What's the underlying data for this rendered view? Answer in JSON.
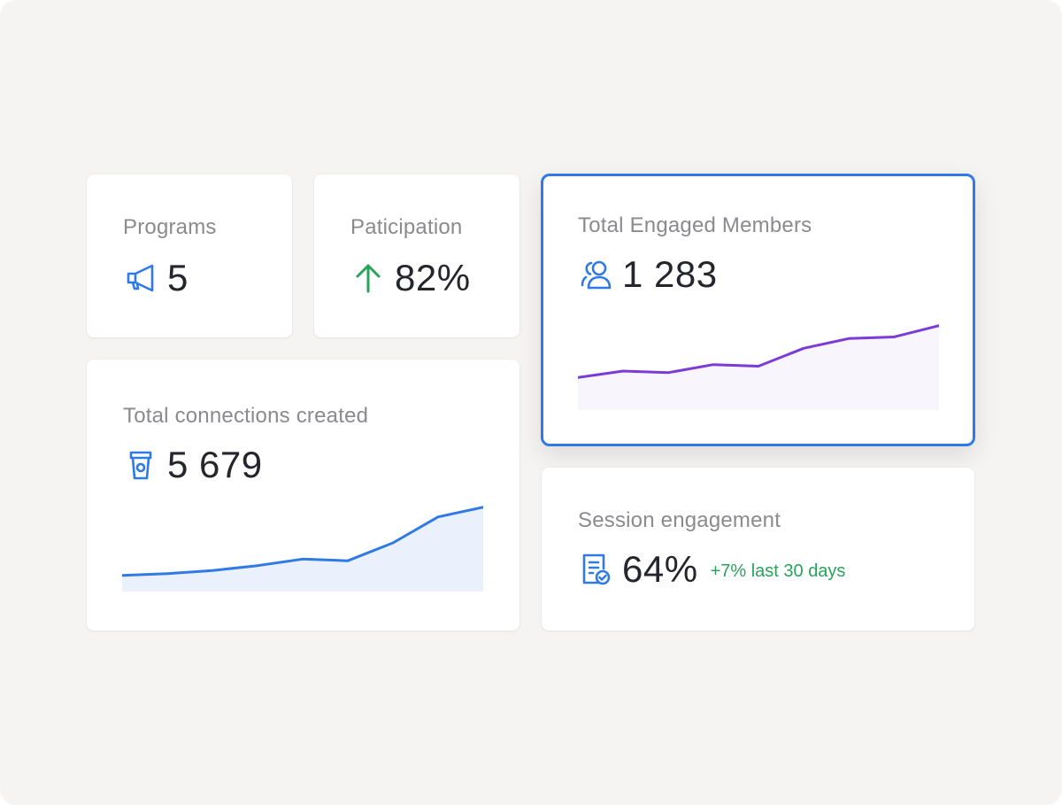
{
  "colors": {
    "background": "#f5f4f2",
    "accent_blue": "#2f7ae5",
    "accent_green": "#27a35a",
    "accent_purple": "#7a3bd6",
    "text_primary": "#25262d",
    "text_secondary": "#8a8a8f"
  },
  "cards": {
    "programs": {
      "label": "Programs",
      "value": "5",
      "icon": "megaphone-icon"
    },
    "participation": {
      "label": "Paticipation",
      "value": "82%",
      "icon": "arrow-up-icon"
    },
    "engaged_members": {
      "label": "Total Engaged Members",
      "value": "1 283",
      "icon": "users-icon",
      "selected": true
    },
    "connections": {
      "label": "Total connections created",
      "value": "5 679",
      "icon": "cup-icon"
    },
    "session_engagement": {
      "label": "Session engagement",
      "value": "64%",
      "delta": "+7% last 30 days",
      "icon": "document-check-icon"
    }
  },
  "chart_data": [
    {
      "type": "area",
      "x": [
        1,
        2,
        3,
        4,
        5,
        6,
        7,
        8,
        9
      ],
      "series": [
        {
          "values": [
            20,
            22,
            21.5,
            24,
            23.5,
            29,
            32,
            32.5,
            36
          ]
        }
      ],
      "ylim": [
        10,
        40
      ],
      "grid": false,
      "color": "#7a3bd6"
    },
    {
      "type": "area",
      "x": [
        1,
        2,
        3,
        4,
        5,
        6,
        7,
        8,
        9
      ],
      "series": [
        {
          "values": [
            10,
            10.5,
            11.5,
            13,
            15,
            14.5,
            20,
            28,
            31
          ]
        }
      ],
      "ylim": [
        5,
        35
      ],
      "grid": false,
      "color": "#2f7ae5"
    }
  ]
}
